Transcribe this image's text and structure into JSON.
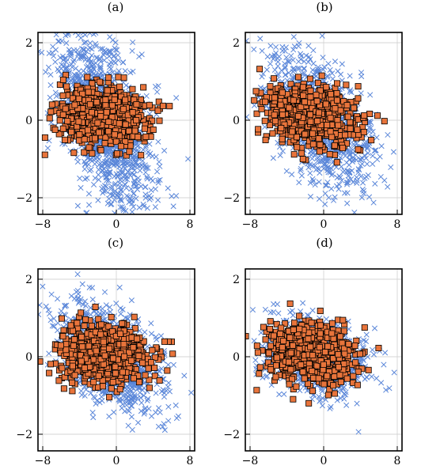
{
  "chart_data": [
    {
      "type": "scatter",
      "title": "(a)",
      "xlim": [
        -8.5,
        8.5
      ],
      "ylim": [
        -2.4,
        2.3
      ],
      "xticks": [
        -8,
        0,
        8
      ],
      "yticks": [
        -2,
        0,
        2
      ],
      "xtick_labels": [
        "−8",
        "0",
        "8"
      ],
      "ytick_labels": [
        "−2",
        "0",
        "2"
      ],
      "grid": true,
      "series": [
        {
          "marker": "x",
          "color": "#5b87d9",
          "count": 1200,
          "cx": -1.2,
          "sx": 2.6,
          "cy": 0.0,
          "sy": 1.0,
          "slope": -0.22
        },
        {
          "marker": "square",
          "color": "#e8743b",
          "edgecolor": "#000000",
          "count": 700,
          "cx": -1.5,
          "sx": 2.4,
          "cy": 0.1,
          "sy": 0.38,
          "slope": -0.02
        }
      ]
    },
    {
      "type": "scatter",
      "title": "(b)",
      "xlim": [
        -8.5,
        8.5
      ],
      "ylim": [
        -2.4,
        2.3
      ],
      "xticks": [
        -8,
        0,
        8
      ],
      "yticks": [
        -2,
        0,
        2
      ],
      "xtick_labels": [
        "−8",
        "0",
        "8"
      ],
      "ytick_labels": [
        "−2",
        "0",
        "2"
      ],
      "grid": true,
      "series": [
        {
          "marker": "x",
          "color": "#5b87d9",
          "count": 1100,
          "cx": -0.5,
          "sx": 2.7,
          "cy": 0.0,
          "sy": 0.75,
          "slope": -0.15
        },
        {
          "marker": "square",
          "color": "#e8743b",
          "edgecolor": "#000000",
          "count": 700,
          "cx": -1.5,
          "sx": 2.4,
          "cy": 0.1,
          "sy": 0.38,
          "slope": -0.02
        }
      ]
    },
    {
      "type": "scatter",
      "title": "(c)",
      "xlim": [
        -8.5,
        8.5
      ],
      "ylim": [
        -2.4,
        2.3
      ],
      "xticks": [
        -8,
        0,
        8
      ],
      "yticks": [
        -2,
        0,
        2
      ],
      "xtick_labels": [
        "−8",
        "0",
        "8"
      ],
      "ytick_labels": [
        "−2",
        "0",
        "2"
      ],
      "grid": true,
      "series": [
        {
          "marker": "x",
          "color": "#5b87d9",
          "count": 1000,
          "cx": -0.8,
          "sx": 2.9,
          "cy": 0.0,
          "sy": 0.6,
          "slope": -0.1
        },
        {
          "marker": "square",
          "color": "#e8743b",
          "edgecolor": "#000000",
          "count": 700,
          "cx": -1.5,
          "sx": 2.4,
          "cy": 0.1,
          "sy": 0.38,
          "slope": -0.02
        }
      ]
    },
    {
      "type": "scatter",
      "title": "(d)",
      "xlim": [
        -8.5,
        8.5
      ],
      "ylim": [
        -2.4,
        2.3
      ],
      "xticks": [
        -8,
        0,
        8
      ],
      "yticks": [
        -2,
        0,
        2
      ],
      "xtick_labels": [
        "−8",
        "0",
        "8"
      ],
      "ytick_labels": [
        "−2",
        "0",
        "2"
      ],
      "grid": true,
      "series": [
        {
          "marker": "x",
          "color": "#5b87d9",
          "count": 900,
          "cx": -1.0,
          "sx": 2.6,
          "cy": 0.0,
          "sy": 0.45,
          "slope": -0.06
        },
        {
          "marker": "square",
          "color": "#e8743b",
          "edgecolor": "#000000",
          "count": 700,
          "cx": -1.5,
          "sx": 2.4,
          "cy": 0.1,
          "sy": 0.38,
          "slope": -0.02
        }
      ]
    }
  ]
}
